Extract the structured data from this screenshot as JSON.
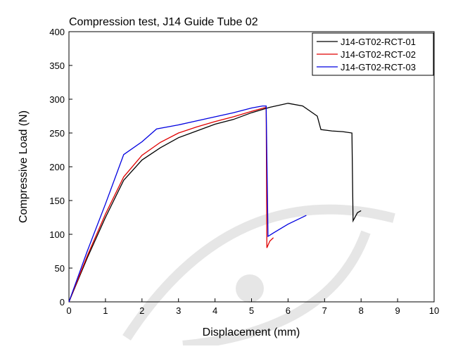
{
  "chart_data": {
    "type": "line",
    "title": "Compression test, J14 Guide Tube 02",
    "x_label": "Displacement (mm)",
    "y_label": "Compressive Load (N)",
    "xlim": [
      0,
      10
    ],
    "ylim": [
      0,
      400
    ],
    "xticks": [
      0,
      1,
      2,
      3,
      4,
      5,
      6,
      7,
      8,
      9,
      10
    ],
    "yticks": [
      0,
      50,
      100,
      150,
      200,
      250,
      300,
      350,
      400
    ],
    "legend": "upper right",
    "series": [
      {
        "name": "J14-GT02-RCT-01",
        "color": "#000000",
        "x": [
          0,
          0.5,
          1,
          1.5,
          2,
          2.5,
          3,
          3.5,
          4,
          4.5,
          5,
          5.5,
          6,
          6.4,
          6.8,
          6.9,
          7.2,
          7.5,
          7.75,
          7.78,
          7.9,
          8
        ],
        "values": [
          0,
          65,
          125,
          180,
          210,
          228,
          243,
          253,
          263,
          270,
          280,
          288,
          294,
          290,
          275,
          255,
          253,
          252,
          250,
          120,
          132,
          135
        ]
      },
      {
        "name": "J14-GT02-RCT-02",
        "color": "#e00000",
        "x": [
          0,
          0.5,
          1,
          1.5,
          2,
          2.5,
          3,
          3.5,
          4,
          4.5,
          5,
          5.4,
          5.42,
          5.5,
          5.6
        ],
        "values": [
          0,
          68,
          130,
          185,
          217,
          236,
          250,
          259,
          267,
          274,
          282,
          288,
          80,
          90,
          95
        ]
      },
      {
        "name": "J14-GT02-RCT-03",
        "color": "#0000e0",
        "x": [
          0,
          0.5,
          1,
          1.5,
          2,
          2.4,
          3,
          3.5,
          4,
          4.5,
          5,
          5.3,
          5.4,
          5.45,
          5.6,
          6,
          6.5
        ],
        "values": [
          0,
          75,
          145,
          218,
          237,
          256,
          262,
          268,
          274,
          280,
          287,
          290,
          290,
          97,
          102,
          115,
          128
        ]
      }
    ]
  }
}
